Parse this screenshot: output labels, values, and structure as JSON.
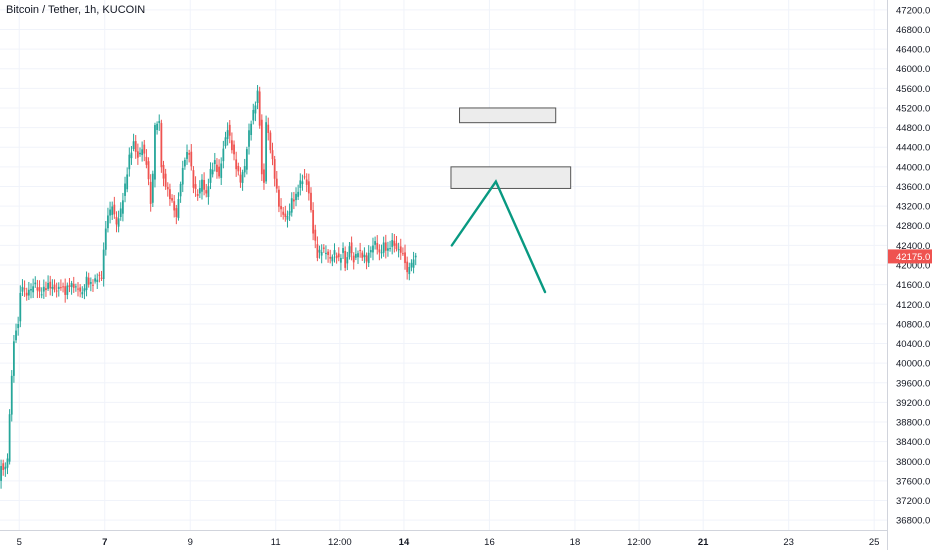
{
  "chart_data": {
    "type": "candlestick",
    "title": "Bitcoin / Tether, 1h, KUCOIN",
    "colors": {
      "up": "#26a69a",
      "down": "#ef5350",
      "drawing": "#089981",
      "price_label_bg": "#ef5350",
      "price_label_text": "#ffffff",
      "axis_text": "#131722",
      "grid": "#f0f3fa"
    },
    "y_axis": {
      "min": 36600,
      "max": 47400,
      "step": 400,
      "position": "right",
      "decimals": 1
    },
    "y_ticks": [
      36800,
      37200,
      37600,
      38000,
      38400,
      38800,
      39200,
      39600,
      40000,
      40400,
      40800,
      41200,
      41600,
      42000,
      42400,
      42800,
      43200,
      43600,
      44000,
      44400,
      44800,
      45200,
      45600,
      46000,
      46400,
      46800,
      47200
    ],
    "x_axis": {
      "unit": "days",
      "min": 4.55,
      "max": 25.3
    },
    "x_ticks": [
      {
        "label": "5",
        "value": 5,
        "bold": false
      },
      {
        "label": "7",
        "value": 7,
        "bold": true
      },
      {
        "label": "9",
        "value": 9,
        "bold": false
      },
      {
        "label": "11",
        "value": 11,
        "bold": false
      },
      {
        "label": "12:00",
        "value": 12.5,
        "bold": false
      },
      {
        "label": "14",
        "value": 14,
        "bold": true
      },
      {
        "label": "16",
        "value": 16,
        "bold": false
      },
      {
        "label": "18",
        "value": 18,
        "bold": false
      },
      {
        "label": "12:00",
        "value": 19.5,
        "bold": false
      },
      {
        "label": "21",
        "value": 21,
        "bold": true
      },
      {
        "label": "23",
        "value": 23,
        "bold": false
      },
      {
        "label": "25",
        "value": 25,
        "bold": false
      }
    ],
    "last_price": {
      "value": 42175.0,
      "label": "42175.0"
    },
    "series_close": [
      [
        4.5,
        37400
      ],
      [
        4.6,
        37900
      ],
      [
        4.65,
        37800
      ],
      [
        4.75,
        38000
      ],
      [
        4.8,
        39000
      ],
      [
        4.85,
        39800
      ],
      [
        4.9,
        40500
      ],
      [
        4.95,
        40700
      ],
      [
        5.0,
        40800
      ],
      [
        5.05,
        41400
      ],
      [
        5.1,
        41500
      ],
      [
        5.2,
        41400
      ],
      [
        5.3,
        41500
      ],
      [
        5.4,
        41600
      ],
      [
        5.5,
        41400
      ],
      [
        5.6,
        41500
      ],
      [
        5.7,
        41600
      ],
      [
        5.8,
        41550
      ],
      [
        5.9,
        41500
      ],
      [
        6.0,
        41600
      ],
      [
        6.1,
        41450
      ],
      [
        6.2,
        41600
      ],
      [
        6.3,
        41550
      ],
      [
        6.4,
        41500
      ],
      [
        6.5,
        41400
      ],
      [
        6.6,
        41700
      ],
      [
        6.7,
        41600
      ],
      [
        6.8,
        41700
      ],
      [
        6.9,
        41800
      ],
      [
        6.95,
        41750
      ],
      [
        7.0,
        42300
      ],
      [
        7.05,
        42700
      ],
      [
        7.1,
        42950
      ],
      [
        7.2,
        43200
      ],
      [
        7.3,
        42800
      ],
      [
        7.4,
        43100
      ],
      [
        7.5,
        43600
      ],
      [
        7.6,
        44200
      ],
      [
        7.7,
        44500
      ],
      [
        7.8,
        44200
      ],
      [
        7.9,
        44400
      ],
      [
        8.0,
        44100
      ],
      [
        8.1,
        43300
      ],
      [
        8.15,
        43800
      ],
      [
        8.2,
        44800
      ],
      [
        8.3,
        44900
      ],
      [
        8.35,
        44000
      ],
      [
        8.4,
        43800
      ],
      [
        8.5,
        43500
      ],
      [
        8.6,
        43300
      ],
      [
        8.7,
        43000
      ],
      [
        8.8,
        43700
      ],
      [
        8.9,
        44200
      ],
      [
        9.0,
        44300
      ],
      [
        9.1,
        43600
      ],
      [
        9.2,
        43400
      ],
      [
        9.3,
        43700
      ],
      [
        9.4,
        43400
      ],
      [
        9.5,
        43900
      ],
      [
        9.6,
        44100
      ],
      [
        9.7,
        43800
      ],
      [
        9.8,
        44400
      ],
      [
        9.9,
        44800
      ],
      [
        10.0,
        44400
      ],
      [
        10.1,
        44000
      ],
      [
        10.2,
        43700
      ],
      [
        10.3,
        44000
      ],
      [
        10.4,
        44700
      ],
      [
        10.5,
        45100
      ],
      [
        10.6,
        45500
      ],
      [
        10.65,
        44900
      ],
      [
        10.7,
        43900
      ],
      [
        10.75,
        43700
      ],
      [
        10.8,
        44900
      ],
      [
        10.9,
        44400
      ],
      [
        11.0,
        43800
      ],
      [
        11.1,
        43200
      ],
      [
        11.2,
        43000
      ],
      [
        11.3,
        42950
      ],
      [
        11.4,
        43300
      ],
      [
        11.5,
        43400
      ],
      [
        11.6,
        43700
      ],
      [
        11.7,
        43800
      ],
      [
        11.8,
        43500
      ],
      [
        11.9,
        42700
      ],
      [
        12.0,
        42200
      ],
      [
        12.1,
        42300
      ],
      [
        12.2,
        42250
      ],
      [
        12.3,
        42100
      ],
      [
        12.4,
        42250
      ],
      [
        12.5,
        42100
      ],
      [
        12.6,
        42300
      ],
      [
        12.65,
        42000
      ],
      [
        12.75,
        42400
      ],
      [
        12.85,
        42100
      ],
      [
        12.95,
        42300
      ],
      [
        13.05,
        42200
      ],
      [
        13.15,
        42100
      ],
      [
        13.25,
        42300
      ],
      [
        13.35,
        42450
      ],
      [
        13.45,
        42200
      ],
      [
        13.55,
        42400
      ],
      [
        13.65,
        42300
      ],
      [
        13.75,
        42500
      ],
      [
        13.85,
        42350
      ],
      [
        13.95,
        42300
      ],
      [
        14.05,
        42100
      ],
      [
        14.1,
        41800
      ],
      [
        14.15,
        41900
      ],
      [
        14.25,
        42100
      ],
      [
        14.3,
        42175
      ]
    ],
    "drawings": {
      "rectangles": [
        {
          "x1": 15.3,
          "x2": 17.55,
          "y1": 45200,
          "y2": 44900
        },
        {
          "x1": 15.1,
          "x2": 17.9,
          "y1": 44000,
          "y2": 43560
        }
      ],
      "path": [
        [
          15.12,
          42400
        ],
        [
          16.15,
          43700
        ],
        [
          17.3,
          41450
        ]
      ]
    }
  }
}
